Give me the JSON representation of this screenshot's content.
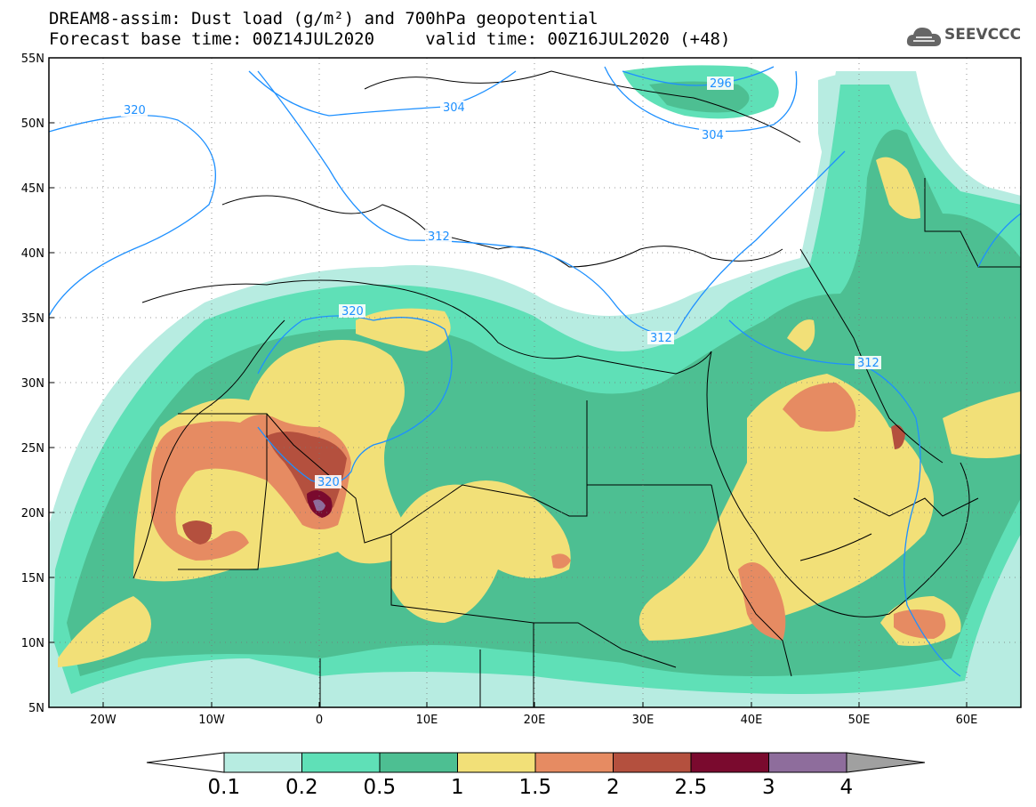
{
  "title": {
    "line1": "DREAM8-assim: Dust load (g/m²) and 700hPa geopotential",
    "line2_left": "Forecast base time: 00Z14JUL2020",
    "line2_right": "valid time: 00Z16JUL2020 (+48)"
  },
  "logo": {
    "text": "SEEVCCC",
    "icon": "cloud-logo-icon"
  },
  "map": {
    "lat_labels": [
      "55N",
      "50N",
      "45N",
      "40N",
      "35N",
      "30N",
      "25N",
      "20N",
      "15N",
      "10N",
      "5N"
    ],
    "lon_labels": [
      "20W",
      "10W",
      "0",
      "10E",
      "20E",
      "30E",
      "40E",
      "50E",
      "60E"
    ],
    "contour_labels": [
      "320",
      "304",
      "296",
      "304",
      "312",
      "320",
      "320",
      "312",
      "312"
    ],
    "colors": {
      "c1": "#b7ece1",
      "c2": "#5fe0b7",
      "c3": "#4dbf92",
      "c4": "#f2e078",
      "c5": "#e68b62",
      "c6": "#b4503e",
      "c7": "#7a0a2e",
      "c8": "#8e6d9c",
      "contour": "#1e90ff",
      "border": "#000000"
    }
  },
  "colorbar": {
    "labels": [
      "0.1",
      "0.2",
      "0.5",
      "1",
      "1.5",
      "2",
      "2.5",
      "3",
      "4"
    ],
    "colors": [
      "#b7ece1",
      "#5fe0b7",
      "#4dbf92",
      "#f2e078",
      "#e68b62",
      "#b4503e",
      "#7a0a2e",
      "#8e6d9c"
    ]
  }
}
